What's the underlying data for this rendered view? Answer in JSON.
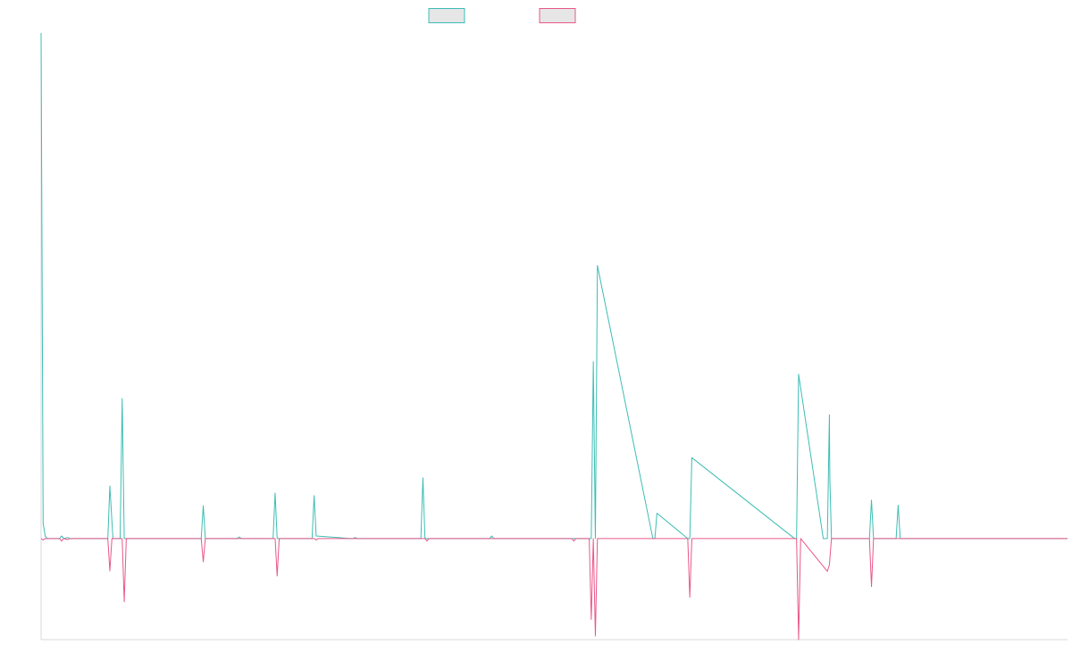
{
  "chart_data": {
    "type": "line",
    "title": "",
    "xlabel": "",
    "ylabel": "",
    "grid": false,
    "legend_position": "top-center",
    "xlim": [
      0,
      1000
    ],
    "ylim": [
      -20,
      100
    ],
    "colors": {
      "series_pos": "#3dbdb5",
      "series_neg": "#e9578a",
      "legend_fill": "#e6e6e6",
      "axis": "#d9d9d9"
    },
    "series": [
      {
        "key": "pos",
        "color": "#3dbdb5",
        "x": [
          0,
          2,
          4,
          6,
          8,
          18,
          20,
          22,
          26,
          28,
          60,
          65,
          67,
          70,
          77,
          79,
          81,
          83,
          146,
          156,
          158,
          160,
          191,
          193,
          195,
          226,
          228,
          230,
          264,
          266,
          268,
          302,
          304,
          306,
          308,
          370,
          372,
          374,
          437,
          439,
          441,
          515,
          517,
          519,
          532,
          536,
          538,
          540,
          542,
          596,
          598,
          600,
          630,
          632,
          634,
          734,
          736,
          738,
          762,
          764,
          766,
          768,
          768.4,
          770,
          807,
          809,
          811,
          833,
          835,
          837,
          1000
        ],
        "y": [
          100,
          3,
          0.5,
          0,
          0,
          0,
          0.5,
          0,
          0.2,
          0,
          0,
          0,
          10.4,
          0,
          0,
          27.7,
          0,
          0,
          0,
          0,
          6.5,
          0,
          0,
          0.3,
          0,
          0,
          9,
          0,
          0,
          8.5,
          0.5,
          0,
          0,
          0.2,
          0,
          0,
          12,
          0,
          0,
          0.5,
          0,
          0,
          0,
          0,
          0,
          0,
          35,
          0,
          54,
          0,
          0,
          5,
          0,
          0,
          16,
          0,
          0,
          32.5,
          0,
          0,
          0,
          24.5,
          12,
          0,
          0,
          7.6,
          0,
          0,
          6.6,
          0,
          0
        ]
      },
      {
        "key": "neg",
        "color": "#e9578a",
        "x": [
          0,
          2,
          4,
          18,
          20,
          22,
          26,
          28,
          65,
          67,
          69,
          79,
          81,
          83,
          156,
          158,
          160,
          228,
          230,
          232,
          266,
          268,
          270,
          374,
          376,
          378,
          517,
          519,
          521,
          534,
          536,
          538,
          540,
          542,
          544,
          630,
          632,
          634,
          736,
          738,
          740,
          766,
          768,
          770,
          807,
          809,
          811,
          1000
        ],
        "y": [
          0,
          -0.3,
          0,
          0,
          -0.5,
          0,
          -0.2,
          0,
          0,
          -6.4,
          0,
          0,
          -12.5,
          0,
          0,
          -4.6,
          0,
          0,
          -7.4,
          0,
          0,
          -0.3,
          0,
          0,
          -0.5,
          0,
          0,
          -0.5,
          0,
          0,
          -16,
          0,
          -19.3,
          0,
          0,
          0,
          -11.6,
          0,
          0,
          -20,
          0,
          -6.5,
          -5.2,
          0,
          0,
          -9.5,
          0,
          0
        ]
      }
    ],
    "legend": [
      {
        "key": "pos",
        "color": "#3dbdb5"
      },
      {
        "key": "neg",
        "color": "#e9578a"
      }
    ]
  }
}
